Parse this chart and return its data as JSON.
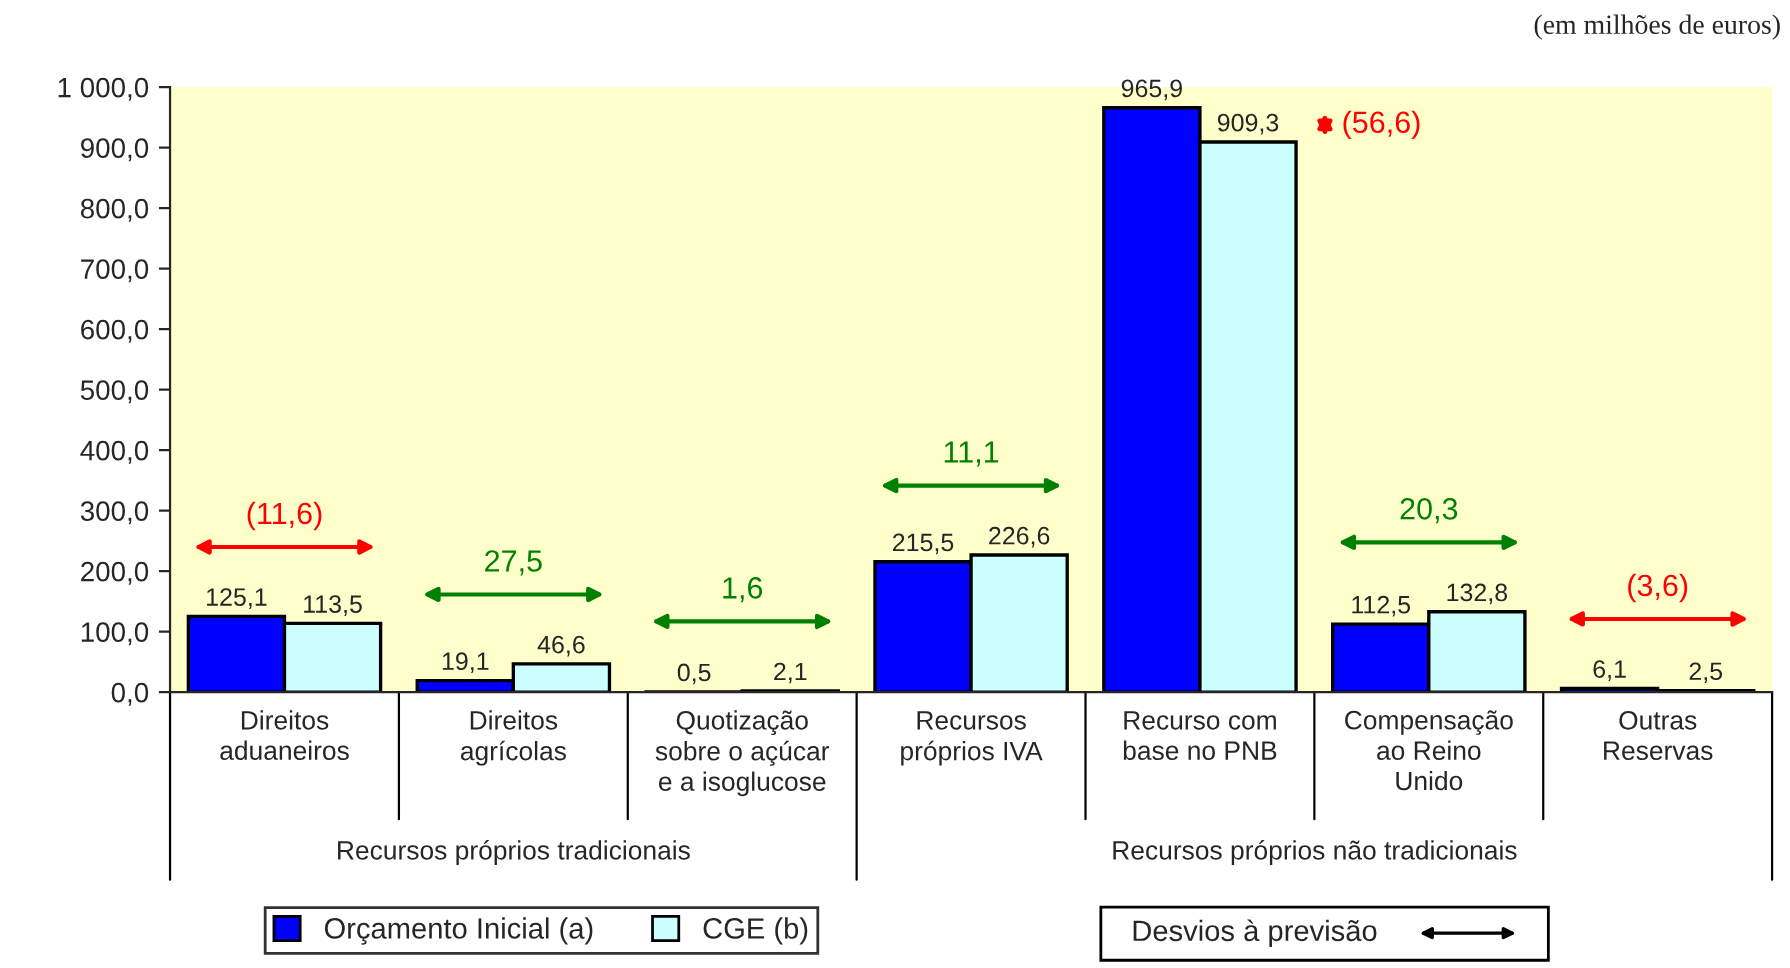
{
  "chart_data": {
    "type": "bar",
    "subtitle": "(em milhões de euros)",
    "categories": [
      "Direitos\naduaneiros",
      "Direitos\nagrícolas",
      "Quotização\nsobre o açúcar\ne a isoglucose",
      "Recursos\npróprios IVA",
      "Recurso com\nbase no PNB",
      "Compensação\nao Reino\nUnido",
      "Outras\nReservas"
    ],
    "series": [
      {
        "name": "Orçamento Inicial (a)",
        "color": "#0000ff",
        "values": [
          125.1,
          19.1,
          0.5,
          215.5,
          965.9,
          112.5,
          6.1
        ],
        "value_labels": [
          "125,1",
          "19,1",
          "0,5",
          "215,5",
          "965,9",
          "112,5",
          "6,1"
        ]
      },
      {
        "name": "CGE (b)",
        "color": "#ccffff",
        "values": [
          113.5,
          46.6,
          2.1,
          226.6,
          909.3,
          132.8,
          2.5
        ],
        "value_labels": [
          "113,5",
          "46,6",
          "2,1",
          "226,6",
          "909,3",
          "132,8",
          "2,5"
        ]
      }
    ],
    "ylim": [
      0,
      1000
    ],
    "yticks": [
      {
        "value": 0,
        "label": "0,0"
      },
      {
        "value": 100,
        "label": "100,0"
      },
      {
        "value": 200,
        "label": "200,0"
      },
      {
        "value": 300,
        "label": "300,0"
      },
      {
        "value": 400,
        "label": "400,0"
      },
      {
        "value": 500,
        "label": "500,0"
      },
      {
        "value": 600,
        "label": "600,0"
      },
      {
        "value": 700,
        "label": "700,0"
      },
      {
        "value": 800,
        "label": "800,0"
      },
      {
        "value": 900,
        "label": "900,0"
      },
      {
        "value": 1000,
        "label": "1 000,0"
      }
    ],
    "legend": "bottom",
    "annotations": [
      "Recursos próprios tradicionais",
      "Recursos próprios não tradicionais",
      "Desvios à previsão",
      "(11,6)",
      "27,5",
      "1,6",
      "11,1",
      "(56,6)",
      "20,3",
      "(3,6)"
    ]
  }
}
